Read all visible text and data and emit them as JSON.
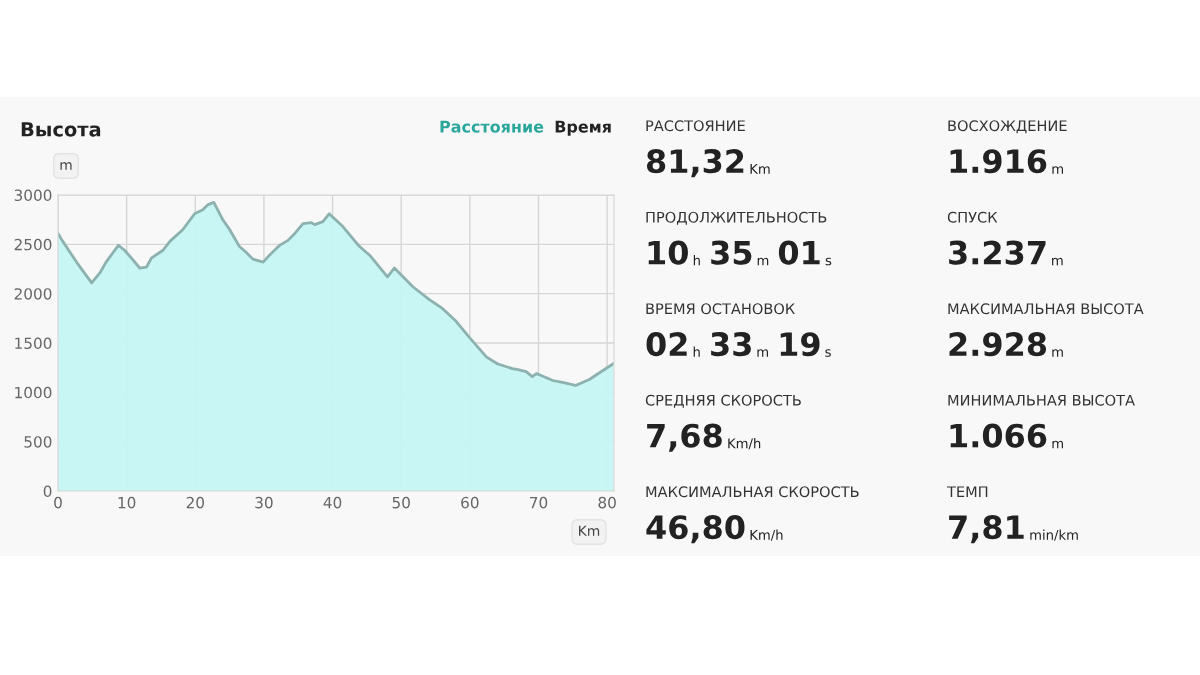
{
  "chart_data": [
    {
      "type": "area",
      "title": "Высота",
      "xlabel": "Km",
      "ylabel": "m",
      "annotations": [
        "Расстояние",
        "Время"
      ],
      "xlim": [
        0,
        81
      ],
      "ylim": [
        0,
        3000
      ],
      "xticks": [
        0,
        10,
        20,
        30,
        40,
        50,
        60,
        70,
        80
      ],
      "yticks": [
        0,
        500,
        1000,
        1500,
        2000,
        2500,
        3000
      ],
      "grid": true,
      "series": [
        {
          "color": "#c4f6f3",
          "x": [
            0,
            0.7,
            2.7,
            4.9,
            6.1,
            7.0,
            8.8,
            9.7,
            10.7,
            11.9,
            12.9,
            13.6,
            15.3,
            16.3,
            18.2,
            19.9,
            21.1,
            21.8,
            22.7,
            24.0,
            25.0,
            26.4,
            27.4,
            28.4,
            29.9,
            30.8,
            32.3,
            33.5,
            34.5,
            35.7,
            36.9,
            37.4,
            38.6,
            39.5,
            41.5,
            43.9,
            45.4,
            48.0,
            49.0,
            51.7,
            54.1,
            56.0,
            58.0,
            59.9,
            62.4,
            64.0,
            66.2,
            67.0,
            68.2,
            69.1,
            69.7,
            72.1,
            73.5,
            75.4,
            77.4,
            80.9
          ],
          "values": [
            2610,
            2530,
            2320,
            2110,
            2210,
            2320,
            2490,
            2440,
            2360,
            2260,
            2270,
            2360,
            2440,
            2530,
            2650,
            2810,
            2850,
            2900,
            2925,
            2750,
            2650,
            2480,
            2420,
            2350,
            2320,
            2390,
            2490,
            2540,
            2610,
            2710,
            2720,
            2700,
            2730,
            2810,
            2680,
            2480,
            2390,
            2170,
            2260,
            2070,
            1940,
            1850,
            1720,
            1560,
            1360,
            1290,
            1240,
            1230,
            1210,
            1160,
            1190,
            1120,
            1100,
            1070,
            1130,
            1290
          ]
        }
      ]
    },
    {
      "type": "other",
      "annotations": [
        "РАССТОЯНИЕ",
        "81,32 Km",
        "ПРОДОЛЖИТЕЛЬНОСТЬ",
        "10 h 35 m 01 s",
        "ВРЕМЯ ОСТАНОВОК",
        "02 h 33 m 19 s",
        "СРЕДНЯЯ СКОРОСТЬ",
        "7,68 Km/h",
        "МАКСИМАЛЬНАЯ СКОРОСТЬ",
        "46,80 Km/h",
        "ВОСХОЖДЕНИЕ",
        "1.916 m",
        "СПУСК",
        "3.237 m",
        "МАКСИМАЛЬНАЯ ВЫСОТА",
        "2.928 m",
        "МИНИМАЛЬНАЯ ВЫСОТА",
        "1.066 m",
        "ТЕМП",
        "7,81 min/km"
      ]
    }
  ]
}
